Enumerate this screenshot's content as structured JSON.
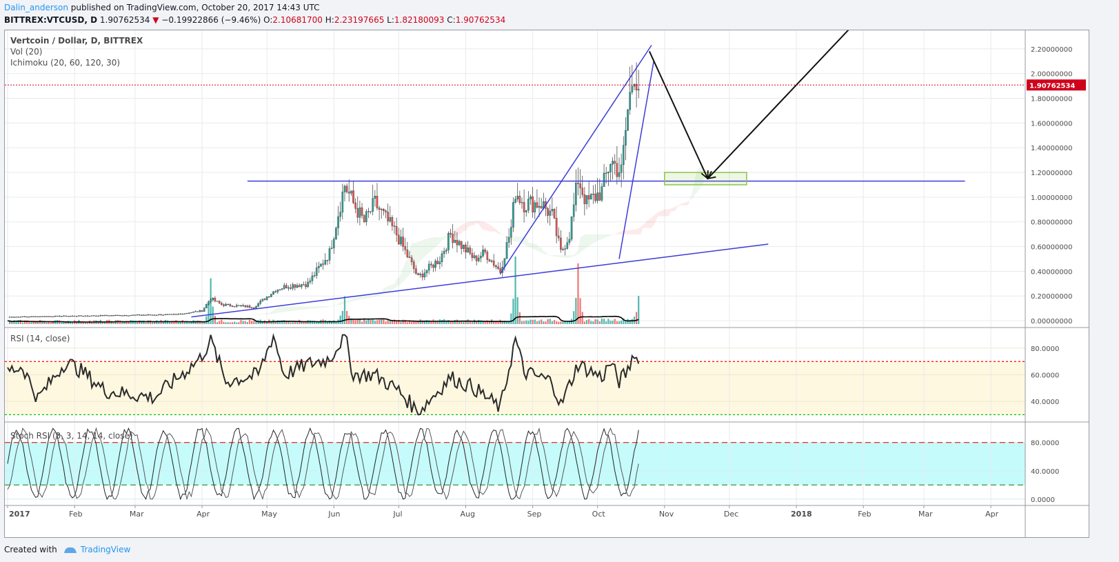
{
  "header": {
    "author": "Dalin_anderson",
    "published": "published on TradingView.com, October 20, 2017 14:43 UTC",
    "symbol": "BITTREX:VTCUSD, D",
    "last": "1.90762534",
    "change": "−0.19922866 (−9.46%)",
    "open_label": "O:",
    "open": "2.10681700",
    "high_label": "H:",
    "high": "2.23197665",
    "low_label": "L:",
    "low": "1.82180093",
    "close_label": "C:",
    "close": "1.90762534"
  },
  "legend": {
    "title": "Vertcoin / Dollar, D, BITTREX",
    "vol": "Vol (20)",
    "ichimoku": "Ichimoku (20, 60, 120, 30)",
    "rsi": "RSI (14, close)",
    "stoch": "Stoch RSI (3, 3, 14, 14, close)"
  },
  "price_axis": {
    "ticks": [
      "2.20000000",
      "2.00000000",
      "1.80000000",
      "1.60000000",
      "1.40000000",
      "1.20000000",
      "1.00000000",
      "0.80000000",
      "0.60000000",
      "0.40000000",
      "0.20000000",
      "0.00000000"
    ],
    "last_label": "1.90762534"
  },
  "rsi_axis": {
    "ticks": [
      "80.0000",
      "60.0000",
      "40.0000"
    ]
  },
  "stoch_axis": {
    "ticks": [
      "80.0000",
      "40.0000",
      "0.0000"
    ]
  },
  "time_axis": {
    "ticks": [
      "2017",
      "Feb",
      "Mar",
      "Apr",
      "May",
      "Jun",
      "Jul",
      "Aug",
      "Sep",
      "Oct",
      "Nov",
      "Dec",
      "2018",
      "Feb",
      "Mar",
      "Apr"
    ]
  },
  "footer": {
    "created_with": "Created with",
    "brand": "TradingView"
  },
  "colors": {
    "up": "#26a69a",
    "down": "#ef5350",
    "trend": "#3b3bd9",
    "last_price": "#d0021b",
    "rsi_band": "#fff8e1",
    "stoch_band": "#c6fbfc"
  },
  "chart_data": {
    "type": "candlestick",
    "x_start": "2017-01-01",
    "x_end": "2018-04-15",
    "price_ylim": [
      -0.05,
      2.35
    ],
    "last_price": 1.90762534,
    "close_anchors": [
      [
        "2017-01-01",
        0.03
      ],
      [
        "2017-03-20",
        0.05
      ],
      [
        "2017-04-01",
        0.08
      ],
      [
        "2017-04-05",
        0.18
      ],
      [
        "2017-04-10",
        0.13
      ],
      [
        "2017-04-25",
        0.11
      ],
      [
        "2017-05-05",
        0.25
      ],
      [
        "2017-05-10",
        0.28
      ],
      [
        "2017-05-20",
        0.3
      ],
      [
        "2017-05-30",
        0.55
      ],
      [
        "2017-06-04",
        0.95
      ],
      [
        "2017-06-06",
        1.1
      ],
      [
        "2017-06-10",
        0.95
      ],
      [
        "2017-06-15",
        0.8
      ],
      [
        "2017-06-20",
        0.95
      ],
      [
        "2017-06-30",
        0.7
      ],
      [
        "2017-07-10",
        0.35
      ],
      [
        "2017-07-20",
        0.5
      ],
      [
        "2017-07-25",
        0.7
      ],
      [
        "2017-08-05",
        0.5
      ],
      [
        "2017-08-10",
        0.55
      ],
      [
        "2017-08-17",
        0.4
      ],
      [
        "2017-08-22",
        0.75
      ],
      [
        "2017-08-24",
        1.05
      ],
      [
        "2017-08-28",
        0.95
      ],
      [
        "2017-09-05",
        0.95
      ],
      [
        "2017-09-10",
        0.85
      ],
      [
        "2017-09-14",
        0.55
      ],
      [
        "2017-09-18",
        0.7
      ],
      [
        "2017-09-22",
        1.15
      ],
      [
        "2017-09-26",
        0.95
      ],
      [
        "2017-10-03",
        1.05
      ],
      [
        "2017-10-07",
        1.3
      ],
      [
        "2017-10-12",
        1.2
      ],
      [
        "2017-10-15",
        1.7
      ],
      [
        "2017-10-18",
        2.05
      ],
      [
        "2017-10-20",
        1.91
      ]
    ],
    "trendlines": [
      {
        "from": [
          "2017-03-27",
          0.03
        ],
        "to": [
          "2017-12-19",
          0.62
        ]
      },
      {
        "from": [
          "2017-04-22",
          1.13
        ],
        "to": [
          "2018-03-20",
          1.13
        ]
      },
      {
        "from": [
          "2017-08-17",
          0.38
        ],
        "to": [
          "2017-10-26",
          2.23
        ]
      },
      {
        "from": [
          "2017-10-11",
          0.5
        ],
        "to": [
          "2017-10-27",
          2.1
        ]
      }
    ],
    "projection": [
      [
        "2017-10-25",
        2.18
      ],
      [
        "2017-11-21",
        1.15
      ],
      [
        "2018-01-26",
        2.37
      ]
    ],
    "target_box": {
      "x": [
        "2017-11-01",
        "2017-12-09"
      ],
      "y": [
        1.1,
        1.2
      ]
    },
    "rsi": {
      "ylim": [
        25,
        95
      ],
      "overbought": 70,
      "oversold": 30,
      "anchors": [
        [
          "2017-01-01",
          63
        ],
        [
          "2017-01-08",
          66
        ],
        [
          "2017-01-15",
          42
        ],
        [
          "2017-01-28",
          70
        ],
        [
          "2017-02-05",
          62
        ],
        [
          "2017-02-15",
          48
        ],
        [
          "2017-03-10",
          43
        ],
        [
          "2017-03-31",
          72
        ],
        [
          "2017-04-05",
          86
        ],
        [
          "2017-04-12",
          55
        ],
        [
          "2017-04-27",
          60
        ],
        [
          "2017-05-04",
          90
        ],
        [
          "2017-05-09",
          60
        ],
        [
          "2017-05-20",
          68
        ],
        [
          "2017-05-30",
          72
        ],
        [
          "2017-06-06",
          90
        ],
        [
          "2017-06-10",
          60
        ],
        [
          "2017-06-20",
          60
        ],
        [
          "2017-07-01",
          48
        ],
        [
          "2017-07-10",
          32
        ],
        [
          "2017-07-25",
          58
        ],
        [
          "2017-08-05",
          50
        ],
        [
          "2017-08-17",
          35
        ],
        [
          "2017-08-24",
          87
        ],
        [
          "2017-08-28",
          62
        ],
        [
          "2017-09-10",
          55
        ],
        [
          "2017-09-14",
          37
        ],
        [
          "2017-09-22",
          68
        ],
        [
          "2017-10-03",
          58
        ],
        [
          "2017-10-07",
          69
        ],
        [
          "2017-10-11",
          55
        ],
        [
          "2017-10-15",
          63
        ],
        [
          "2017-10-18",
          78
        ],
        [
          "2017-10-20",
          67
        ]
      ]
    },
    "stoch_rsi": {
      "ylim": [
        -8,
        108
      ],
      "upper": 80,
      "lower": 20,
      "period_days": 17,
      "phase_offset": 3
    },
    "volume": {
      "spikes": [
        [
          "2017-04-05",
          0.7
        ],
        [
          "2017-06-06",
          0.4
        ],
        [
          "2017-08-24",
          1.0
        ],
        [
          "2017-09-22",
          0.9
        ],
        [
          "2017-10-20",
          0.35
        ]
      ]
    }
  }
}
